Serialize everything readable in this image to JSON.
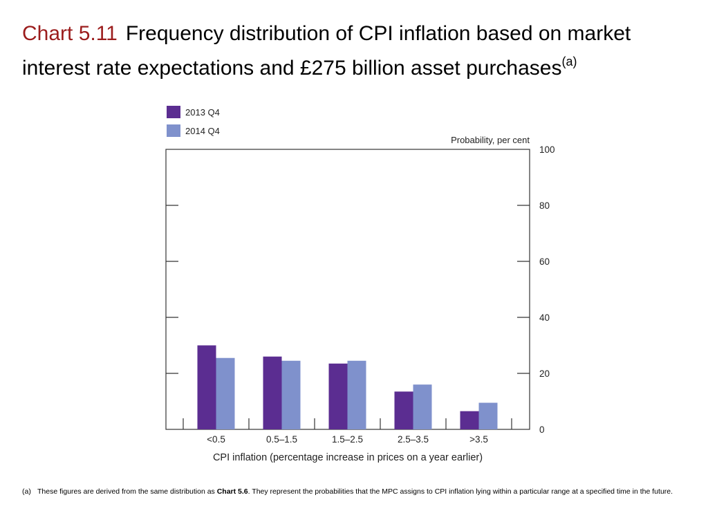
{
  "title": {
    "chart_number": "Chart 5.11",
    "text": "Frequency distribution of CPI inflation based on market interest rate expectations and £275 billion asset purchases",
    "note_marker": "(a)"
  },
  "footnote": {
    "label": "(a)",
    "text_before": "These figures are derived from the same distribution as ",
    "bold_ref": "Chart 5.6",
    "text_after": ".  They represent the probabilities that the MPC assigns to CPI inflation lying within a particular range at a specified time in the future."
  },
  "colors": {
    "series_2013": "#5b2d91",
    "series_2014": "#7f91cc",
    "chart_number": "#9b1c1c"
  },
  "chart_data": {
    "type": "bar",
    "categories": [
      "<0.5",
      "0.5–1.5",
      "1.5–2.5",
      "2.5–3.5",
      ">3.5"
    ],
    "series": [
      {
        "name": "2013 Q4",
        "values": [
          30,
          26,
          23.5,
          13.5,
          6.5
        ]
      },
      {
        "name": "2014 Q4",
        "values": [
          25.5,
          24.5,
          24.5,
          16,
          9.5
        ]
      }
    ],
    "ylabel": "Probability, per cent",
    "xlabel": "CPI inflation (percentage increase in prices on a year earlier)",
    "ylim": [
      0,
      100
    ],
    "yticks": [
      0,
      20,
      40,
      60,
      80,
      100
    ],
    "y_axis_side": "right",
    "grid": false,
    "legend_position": "top-left"
  }
}
